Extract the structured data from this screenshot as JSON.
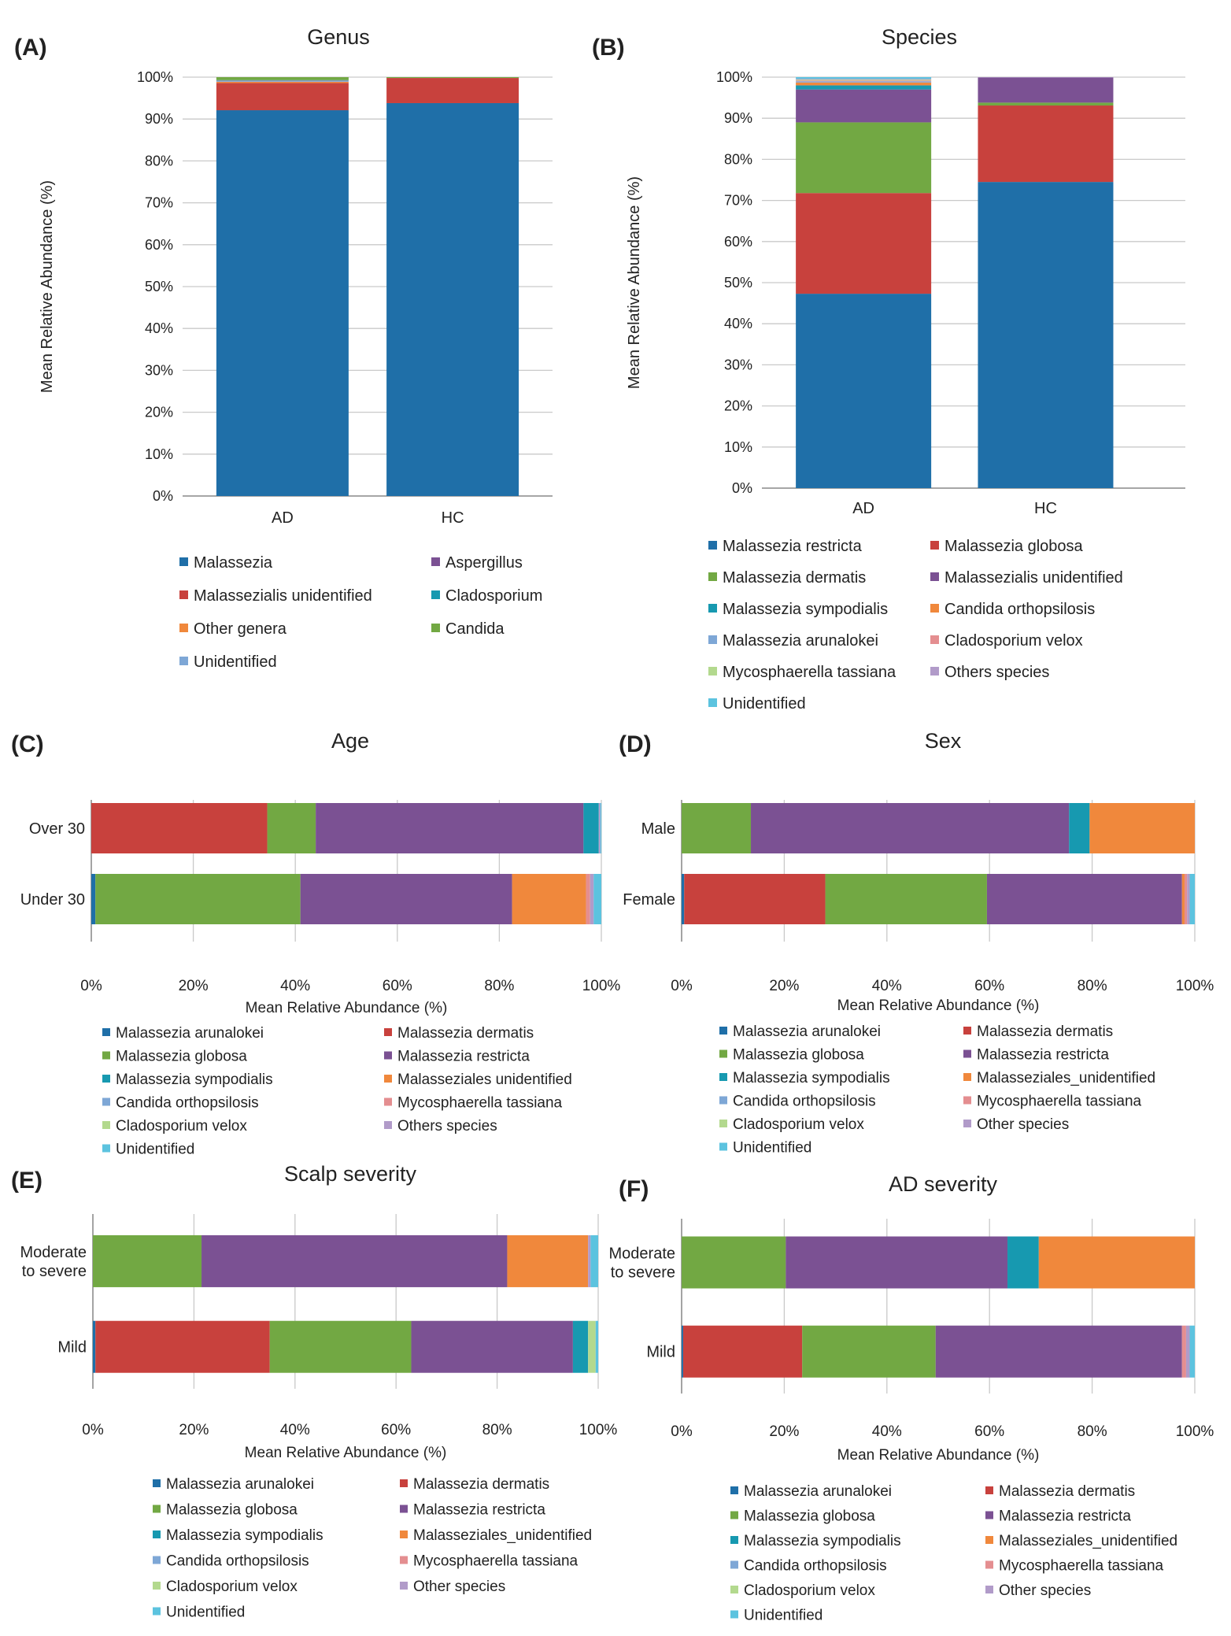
{
  "colors": {
    "dark_blue": "#1f6fa8",
    "red": "#c8413d",
    "green": "#72a843",
    "purple": "#7b5193",
    "teal": "#1799b0",
    "orange": "#f0883c",
    "light_blue": "#7ea7d6",
    "pink": "#e48e90",
    "light_green": "#b3d98e",
    "lavender": "#b19bc9",
    "sky": "#5cc3df",
    "grid": "#c9c9c9",
    "axis": "#8c8c8c",
    "text": "#222222"
  },
  "chart_data": [
    {
      "panel": "(A)",
      "type": "bar",
      "orientation": "vertical",
      "stacked": true,
      "title": "Genus",
      "xlabel": "",
      "ylabel": "Mean Relative Abundance (%)",
      "ylim": [
        0,
        100
      ],
      "yticks": [
        "0%",
        "10%",
        "20%",
        "30%",
        "40%",
        "50%",
        "60%",
        "70%",
        "80%",
        "90%",
        "100%"
      ],
      "categories": [
        "AD",
        "HC"
      ],
      "series": [
        {
          "name": "Malassezia",
          "color": "dark_blue",
          "values": [
            92.1,
            93.8
          ]
        },
        {
          "name": "Malassezialis unidentified",
          "color": "red",
          "values": [
            6.5,
            6.0
          ]
        },
        {
          "name": "Other genera",
          "color": "orange",
          "values": [
            0.3,
            0.0
          ]
        },
        {
          "name": "Unidentified",
          "color": "light_blue",
          "values": [
            0.2,
            0.0
          ]
        },
        {
          "name": "Aspergillus",
          "color": "purple",
          "values": [
            0.1,
            0.0
          ]
        },
        {
          "name": "Cladosporium",
          "color": "teal",
          "values": [
            0.1,
            0.0
          ]
        },
        {
          "name": "Candida",
          "color": "green",
          "values": [
            0.7,
            0.2
          ]
        }
      ],
      "legend": {
        "position": "bottom",
        "columns": 2,
        "order": [
          "Malassezia",
          "Aspergillus",
          "Malassezialis unidentified",
          "Cladosporium",
          "Other genera",
          "Candida",
          "Unidentified"
        ]
      }
    },
    {
      "panel": "(B)",
      "type": "bar",
      "orientation": "vertical",
      "stacked": true,
      "title": "Species",
      "xlabel": "",
      "ylabel": "Mean Relative Abundance (%)",
      "ylim": [
        0,
        100
      ],
      "yticks": [
        "0%",
        "10%",
        "20%",
        "30%",
        "40%",
        "50%",
        "60%",
        "70%",
        "80%",
        "90%",
        "100%"
      ],
      "categories": [
        "AD",
        "HC"
      ],
      "series": [
        {
          "name": "Malassezia restricta",
          "color": "dark_blue",
          "values": [
            47.3,
            74.5
          ]
        },
        {
          "name": "Malassezia globosa",
          "color": "red",
          "values": [
            24.5,
            18.6
          ]
        },
        {
          "name": "Malassezia dermatis",
          "color": "green",
          "values": [
            17.2,
            0.7
          ]
        },
        {
          "name": "Malassezialis unidentified",
          "color": "purple",
          "values": [
            8.0,
            6.1
          ]
        },
        {
          "name": "Malassezia sympodialis",
          "color": "teal",
          "values": [
            1.0,
            0.0
          ]
        },
        {
          "name": "Candida orthopsilosis",
          "color": "orange",
          "values": [
            0.7,
            0.0
          ]
        },
        {
          "name": "Malassezia arunalokei",
          "color": "light_blue",
          "values": [
            0.3,
            0.0
          ]
        },
        {
          "name": "Cladosporium velox",
          "color": "pink",
          "values": [
            0.2,
            0.0
          ]
        },
        {
          "name": "Mycosphaerella tassiana",
          "color": "light_green",
          "values": [
            0.2,
            0.0
          ]
        },
        {
          "name": "Others species",
          "color": "lavender",
          "values": [
            0.2,
            0.1
          ]
        },
        {
          "name": "Unidentified",
          "color": "sky",
          "values": [
            0.4,
            0.0
          ]
        }
      ],
      "legend": {
        "position": "bottom",
        "columns": 2,
        "order": [
          "Malassezia restricta",
          "Malassezia globosa",
          "Malassezia dermatis",
          "Malassezialis unidentified",
          "Malassezia sympodialis",
          "Candida orthopsilosis",
          "Malassezia arunalokei",
          "Cladosporium velox",
          "Mycosphaerella tassiana",
          "Others species",
          "Unidentified"
        ]
      }
    },
    {
      "panel": "(C)",
      "type": "bar",
      "orientation": "horizontal",
      "stacked": true,
      "title": "Age",
      "xlabel": "Mean Relative Abundance (%)",
      "ylabel": "",
      "xlim": [
        0,
        100
      ],
      "xticks": [
        "0%",
        "20%",
        "40%",
        "60%",
        "80%",
        "100%"
      ],
      "categories": [
        "Over 30",
        "Under 30"
      ],
      "series": [
        {
          "name": "Malassezia arunalokei",
          "color": "dark_blue",
          "values": [
            0.0,
            0.8
          ]
        },
        {
          "name": "Malassezia dermatis",
          "color": "red",
          "values": [
            34.5,
            0.0
          ]
        },
        {
          "name": "Malassezia globosa",
          "color": "green",
          "values": [
            9.5,
            40.2
          ]
        },
        {
          "name": "Malassezia restricta",
          "color": "purple",
          "values": [
            52.5,
            41.5
          ]
        },
        {
          "name": "Malassezia sympodialis",
          "color": "teal",
          "values": [
            3.0,
            0.0
          ]
        },
        {
          "name": "Malasseziales unidentified",
          "color": "orange",
          "values": [
            0.0,
            14.5
          ]
        },
        {
          "name": "Candida orthopsilosis",
          "color": "light_blue",
          "values": [
            0.0,
            0.0
          ]
        },
        {
          "name": "Mycosphaerella tassiana",
          "color": "pink",
          "values": [
            0.0,
            0.8
          ]
        },
        {
          "name": "Cladosporium velox",
          "color": "light_green",
          "values": [
            0.0,
            0.0
          ]
        },
        {
          "name": "Others species",
          "color": "lavender",
          "values": [
            0.3,
            0.7
          ]
        },
        {
          "name": "Unidentified",
          "color": "sky",
          "values": [
            0.2,
            1.5
          ]
        }
      ],
      "legend": {
        "position": "bottom",
        "columns": 2,
        "order": [
          "Malassezia arunalokei",
          "Malassezia dermatis",
          "Malassezia globosa",
          "Malassezia restricta",
          "Malassezia sympodialis",
          "Malasseziales unidentified",
          "Candida orthopsilosis",
          "Mycosphaerella tassiana",
          "Cladosporium velox",
          "Others species",
          "Unidentified"
        ]
      }
    },
    {
      "panel": "(D)",
      "type": "bar",
      "orientation": "horizontal",
      "stacked": true,
      "title": "Sex",
      "xlabel": "Mean Relative Abundance (%)",
      "ylabel": "",
      "xlim": [
        0,
        100
      ],
      "xticks": [
        "0%",
        "20%",
        "40%",
        "60%",
        "80%",
        "100%"
      ],
      "categories": [
        "Male",
        "Female"
      ],
      "series": [
        {
          "name": "Malassezia arunalokei",
          "color": "dark_blue",
          "values": [
            0.0,
            0.5
          ]
        },
        {
          "name": "Malassezia dermatis",
          "color": "red",
          "values": [
            0.0,
            27.5
          ]
        },
        {
          "name": "Malassezia globosa",
          "color": "green",
          "values": [
            13.5,
            31.5
          ]
        },
        {
          "name": "Malassezia restricta",
          "color": "purple",
          "values": [
            62.0,
            38.0
          ]
        },
        {
          "name": "Malassezia sympodialis",
          "color": "teal",
          "values": [
            4.0,
            0.0
          ]
        },
        {
          "name": "Malasseziales_unidentified",
          "color": "orange",
          "values": [
            20.5,
            0.5
          ]
        },
        {
          "name": "Candida orthopsilosis",
          "color": "light_blue",
          "values": [
            0.0,
            0.0
          ]
        },
        {
          "name": "Mycosphaerella tassiana",
          "color": "pink",
          "values": [
            0.0,
            0.5
          ]
        },
        {
          "name": "Cladosporium velox",
          "color": "light_green",
          "values": [
            0.0,
            0.0
          ]
        },
        {
          "name": "Other species",
          "color": "lavender",
          "values": [
            0.0,
            0.5
          ]
        },
        {
          "name": "Unidentified",
          "color": "sky",
          "values": [
            0.0,
            1.0
          ]
        }
      ],
      "legend": {
        "position": "bottom",
        "columns": 2,
        "order": [
          "Malassezia arunalokei",
          "Malassezia dermatis",
          "Malassezia globosa",
          "Malassezia restricta",
          "Malassezia sympodialis",
          "Malasseziales_unidentified",
          "Candida orthopsilosis",
          "Mycosphaerella tassiana",
          "Cladosporium velox",
          "Other species",
          "Unidentified"
        ]
      }
    },
    {
      "panel": "(E)",
      "type": "bar",
      "orientation": "horizontal",
      "stacked": true,
      "title": "Scalp severity",
      "xlabel": "Mean Relative Abundance (%)",
      "ylabel": "",
      "xlim": [
        0,
        100
      ],
      "xticks": [
        "0%",
        "20%",
        "40%",
        "60%",
        "80%",
        "100%"
      ],
      "categories": [
        "Moderate\nto severe",
        "Mild"
      ],
      "series": [
        {
          "name": "Malassezia arunalokei",
          "color": "dark_blue",
          "values": [
            0.0,
            0.5
          ]
        },
        {
          "name": "Malassezia dermatis",
          "color": "red",
          "values": [
            0.0,
            34.5
          ]
        },
        {
          "name": "Malassezia globosa",
          "color": "green",
          "values": [
            21.5,
            28.0
          ]
        },
        {
          "name": "Malassezia restricta",
          "color": "purple",
          "values": [
            60.5,
            32.0
          ]
        },
        {
          "name": "Malassezia sympodialis",
          "color": "teal",
          "values": [
            0.0,
            3.0
          ]
        },
        {
          "name": "Malasseziales_unidentified",
          "color": "orange",
          "values": [
            16.0,
            0.0
          ]
        },
        {
          "name": "Candida orthopsilosis",
          "color": "light_blue",
          "values": [
            0.0,
            0.0
          ]
        },
        {
          "name": "Mycosphaerella tassiana",
          "color": "pink",
          "values": [
            0.0,
            0.0
          ]
        },
        {
          "name": "Cladosporium velox",
          "color": "light_green",
          "values": [
            0.0,
            1.5
          ]
        },
        {
          "name": "Other species",
          "color": "lavender",
          "values": [
            0.5,
            0.0
          ]
        },
        {
          "name": "Unidentified",
          "color": "sky",
          "values": [
            1.5,
            0.5
          ]
        }
      ],
      "legend": {
        "position": "bottom",
        "columns": 2,
        "order": [
          "Malassezia arunalokei",
          "Malassezia dermatis",
          "Malassezia globosa",
          "Malassezia restricta",
          "Malassezia sympodialis",
          "Malasseziales_unidentified",
          "Candida orthopsilosis",
          "Mycosphaerella tassiana",
          "Cladosporium velox",
          "Other species",
          "Unidentified"
        ]
      }
    },
    {
      "panel": "(F)",
      "type": "bar",
      "orientation": "horizontal",
      "stacked": true,
      "title": "AD severity",
      "xlabel": "Mean Relative Abundance (%)",
      "ylabel": "",
      "xlim": [
        0,
        100
      ],
      "xticks": [
        "0%",
        "20%",
        "40%",
        "60%",
        "80%",
        "100%"
      ],
      "categories": [
        "Moderate\nto severe",
        "Mild"
      ],
      "series": [
        {
          "name": "Malassezia arunalokei",
          "color": "dark_blue",
          "values": [
            0.0,
            0.3
          ]
        },
        {
          "name": "Malassezia dermatis",
          "color": "red",
          "values": [
            0.0,
            23.2
          ]
        },
        {
          "name": "Malassezia globosa",
          "color": "green",
          "values": [
            20.3,
            26.0
          ]
        },
        {
          "name": "Malassezia restricta",
          "color": "purple",
          "values": [
            43.2,
            48.0
          ]
        },
        {
          "name": "Malassezia sympodialis",
          "color": "teal",
          "values": [
            6.1,
            0.0
          ]
        },
        {
          "name": "Malasseziales_unidentified",
          "color": "orange",
          "values": [
            30.4,
            0.0
          ]
        },
        {
          "name": "Candida orthopsilosis",
          "color": "light_blue",
          "values": [
            0.0,
            0.0
          ]
        },
        {
          "name": "Mycosphaerella tassiana",
          "color": "pink",
          "values": [
            0.0,
            0.8
          ]
        },
        {
          "name": "Cladosporium velox",
          "color": "light_green",
          "values": [
            0.0,
            0.0
          ]
        },
        {
          "name": "Other species",
          "color": "lavender",
          "values": [
            0.0,
            0.7
          ]
        },
        {
          "name": "Unidentified",
          "color": "sky",
          "values": [
            0.0,
            1.0
          ]
        }
      ],
      "legend": {
        "position": "bottom",
        "columns": 2,
        "order": [
          "Malassezia arunalokei",
          "Malassezia dermatis",
          "Malassezia globosa",
          "Malassezia restricta",
          "Malassezia sympodialis",
          "Malasseziales_unidentified",
          "Candida orthopsilosis",
          "Mycosphaerella tassiana",
          "Cladosporium velox",
          "Other species",
          "Unidentified"
        ]
      }
    }
  ]
}
